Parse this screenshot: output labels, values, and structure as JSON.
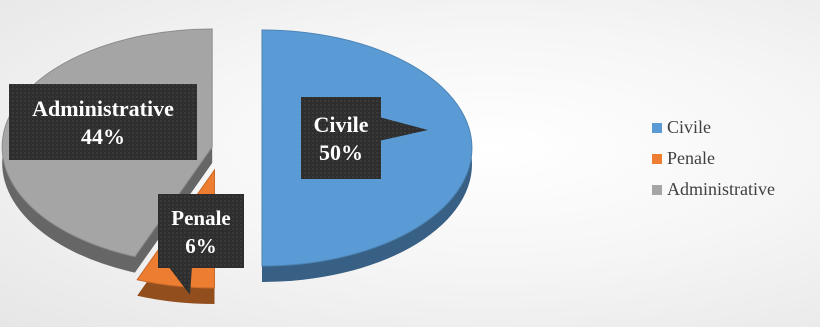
{
  "chart_data": {
    "type": "pie",
    "title": "",
    "slices": [
      {
        "label": "Civile",
        "value": 50,
        "percent_label": "50%",
        "color": "#5b9bd5"
      },
      {
        "label": "Penale",
        "value": 6,
        "percent_label": "6%",
        "color": "#ed7d31"
      },
      {
        "label": "Administrative",
        "value": 44,
        "percent_label": "44%",
        "color": "#a5a5a5"
      }
    ],
    "exploded": true,
    "style": "3d",
    "legend": {
      "position": "right"
    }
  }
}
